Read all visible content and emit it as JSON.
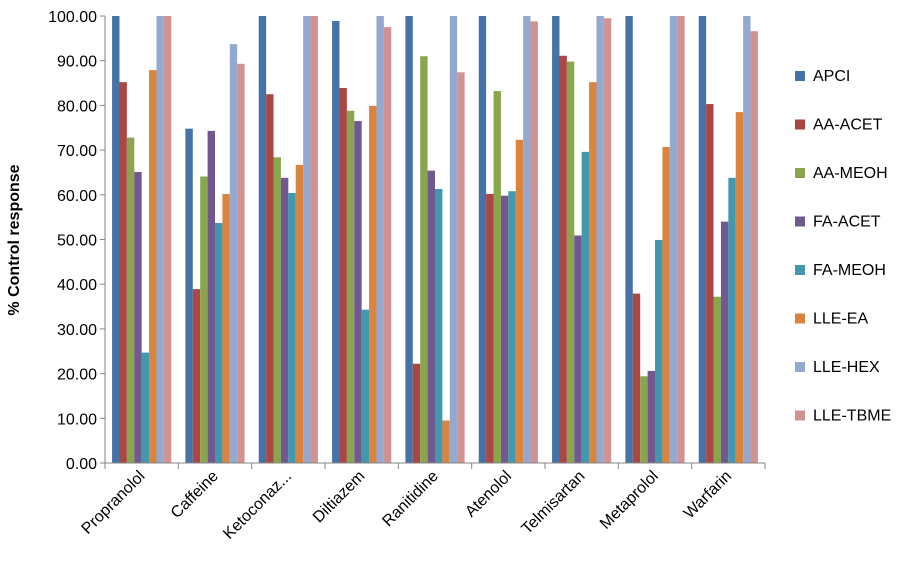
{
  "chart_data": {
    "type": "bar",
    "ylabel": "% Control response",
    "ylim": [
      0,
      100
    ],
    "yticks": [
      "0.00",
      "10.00",
      "20.00",
      "30.00",
      "40.00",
      "50.00",
      "60.00",
      "70.00",
      "80.00",
      "90.00",
      "100.00"
    ],
    "categories": [
      "Propranolol",
      "Caffeine",
      "Ketoconaz...",
      "Diltiazem",
      "Ranitidine",
      "Atenolol",
      "Telmisartan",
      "Metaprolol",
      "Warfarin"
    ],
    "legend_position": "right",
    "grid": false,
    "series": [
      {
        "name": "APCI",
        "color": "#4572A7",
        "values": [
          100,
          74.8,
          100,
          98.9,
          100,
          100,
          100,
          100,
          100
        ]
      },
      {
        "name": "AA-ACET",
        "color": "#AA4643",
        "values": [
          85.2,
          38.9,
          82.5,
          83.9,
          22.2,
          60.2,
          91.1,
          37.9,
          80.3
        ]
      },
      {
        "name": "AA-MEOH",
        "color": "#89A54E",
        "values": [
          72.8,
          64.1,
          68.4,
          78.8,
          91.0,
          83.2,
          89.8,
          19.4,
          37.2
        ]
      },
      {
        "name": "FA-ACET",
        "color": "#71588F",
        "values": [
          65.1,
          74.3,
          63.8,
          76.5,
          65.4,
          59.8,
          50.9,
          20.6,
          54.0
        ]
      },
      {
        "name": "FA-MEOH",
        "color": "#4198AF",
        "values": [
          24.7,
          53.7,
          60.4,
          34.3,
          61.3,
          60.8,
          69.6,
          49.9,
          63.8
        ]
      },
      {
        "name": "LLE-EA",
        "color": "#DB843D",
        "values": [
          87.9,
          60.2,
          66.7,
          79.9,
          9.5,
          72.3,
          85.2,
          70.7,
          78.5
        ]
      },
      {
        "name": "LLE-HEX",
        "color": "#93A9CF",
        "values": [
          100,
          93.7,
          100,
          100,
          100,
          100,
          100,
          100,
          100
        ]
      },
      {
        "name": "LLE-TBME",
        "color": "#D19392",
        "values": [
          100,
          89.3,
          100,
          97.5,
          87.4,
          98.8,
          99.5,
          100,
          96.6
        ]
      }
    ]
  }
}
